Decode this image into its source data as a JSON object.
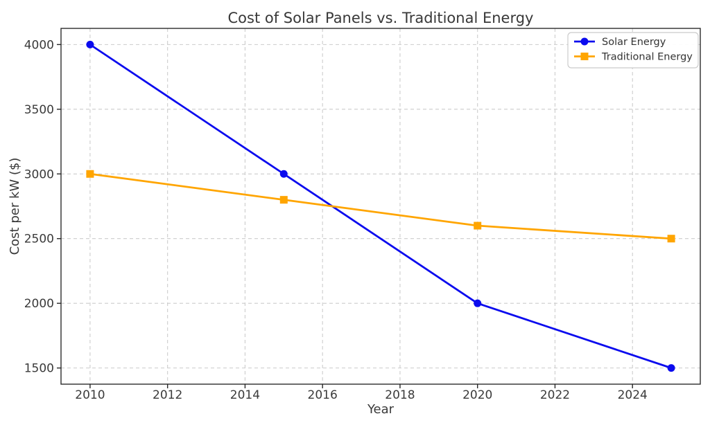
{
  "figure": {
    "background": "#ffffff"
  },
  "chart_data": {
    "type": "line",
    "title": "Cost of Solar Panels vs. Traditional Energy",
    "xlabel": "Year",
    "ylabel": "Cost per kW ($)",
    "x": [
      2010,
      2015,
      2020,
      2025
    ],
    "series": [
      {
        "name": "Solar Energy",
        "color": "#0b0bee",
        "marker": "circle",
        "values": [
          4000,
          3000,
          2000,
          1500
        ]
      },
      {
        "name": "Traditional Energy",
        "color": "#ffa500",
        "marker": "square",
        "values": [
          3000,
          2800,
          2600,
          2500
        ]
      }
    ],
    "xlim": [
      2009.25,
      2025.75
    ],
    "ylim": [
      1375,
      4125
    ],
    "xticks": [
      2010,
      2012,
      2014,
      2016,
      2018,
      2020,
      2022,
      2024
    ],
    "yticks": [
      1500,
      2000,
      2500,
      3000,
      3500,
      4000
    ],
    "grid": true,
    "grid_style": "dashed",
    "grid_color": "#cccccc",
    "legend_position": "upper right"
  }
}
